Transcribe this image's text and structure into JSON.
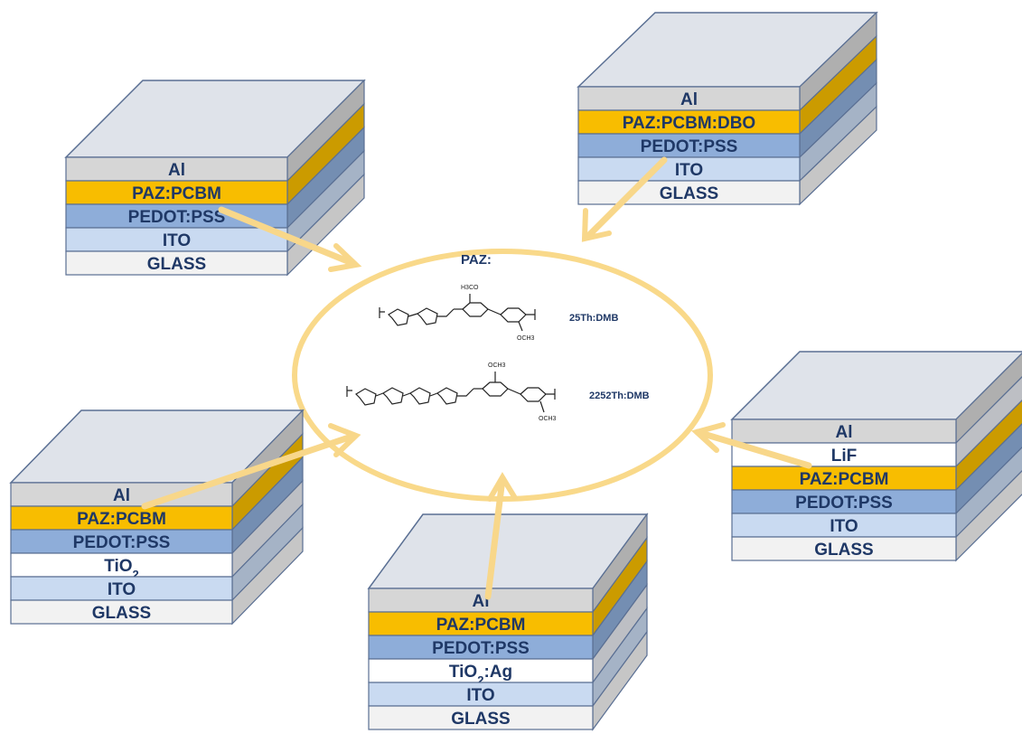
{
  "colors": {
    "Al": "#d6d6d6",
    "LiF": "#ffffff",
    "PAZ:PCBM": "#f8bd00",
    "PAZ:PCBM:DBO": "#f8bd00",
    "PEDOT:PSS": "#8eadd9",
    "TiO2": "#ffffff",
    "TiO2:Ag": "#ffffff",
    "ITO": "#c9daf1",
    "GLASS": "#f2f2f2",
    "arrow": "#f8d78a",
    "ellipse": "#f9d98a",
    "text": "#1f3866"
  },
  "center": {
    "title": "PAZ:",
    "molecules": [
      {
        "label": "25Th:DMB",
        "substituent_top": "H3CO",
        "substituent_bottom": "OCH3",
        "end_n": "n"
      },
      {
        "label": "2252Th:DMB",
        "substituent_top": "OCH3",
        "substituent_bottom": "OCH3",
        "end_n": "n"
      }
    ]
  },
  "stacks": [
    {
      "id": "stack-top-left",
      "layers": [
        {
          "key": "Al",
          "text": "Al"
        },
        {
          "key": "PAZ:PCBM",
          "text": "PAZ:PCBM"
        },
        {
          "key": "PEDOT:PSS",
          "text": "PEDOT:PSS"
        },
        {
          "key": "ITO",
          "text": "ITO"
        },
        {
          "key": "GLASS",
          "text": "GLASS"
        }
      ]
    },
    {
      "id": "stack-top-right",
      "layers": [
        {
          "key": "Al",
          "text": "Al"
        },
        {
          "key": "PAZ:PCBM:DBO",
          "text": "PAZ:PCBM:DBO"
        },
        {
          "key": "PEDOT:PSS",
          "text": "PEDOT:PSS"
        },
        {
          "key": "ITO",
          "text": "ITO"
        },
        {
          "key": "GLASS",
          "text": "GLASS"
        }
      ]
    },
    {
      "id": "stack-mid-right",
      "layers": [
        {
          "key": "Al",
          "text": "Al"
        },
        {
          "key": "LiF",
          "text": "LiF"
        },
        {
          "key": "PAZ:PCBM",
          "text": "PAZ:PCBM"
        },
        {
          "key": "PEDOT:PSS",
          "text": "PEDOT:PSS"
        },
        {
          "key": "ITO",
          "text": "ITO"
        },
        {
          "key": "GLASS",
          "text": "GLASS"
        }
      ]
    },
    {
      "id": "stack-bottom-left",
      "layers": [
        {
          "key": "Al",
          "text": "Al"
        },
        {
          "key": "PAZ:PCBM",
          "text": "PAZ:PCBM"
        },
        {
          "key": "PEDOT:PSS",
          "text": "PEDOT:PSS"
        },
        {
          "key": "TiO2",
          "text": "TiO",
          "sub": "2",
          "suffix": ""
        },
        {
          "key": "ITO",
          "text": "ITO"
        },
        {
          "key": "GLASS",
          "text": "GLASS"
        }
      ]
    },
    {
      "id": "stack-bottom-center",
      "layers": [
        {
          "key": "Al",
          "text": "Al"
        },
        {
          "key": "PAZ:PCBM",
          "text": "PAZ:PCBM"
        },
        {
          "key": "PEDOT:PSS",
          "text": "PEDOT:PSS"
        },
        {
          "key": "TiO2:Ag",
          "text": "TiO",
          "sub": "2",
          "suffix": ":Ag"
        },
        {
          "key": "ITO",
          "text": "ITO"
        },
        {
          "key": "GLASS",
          "text": "GLASS"
        }
      ]
    }
  ]
}
